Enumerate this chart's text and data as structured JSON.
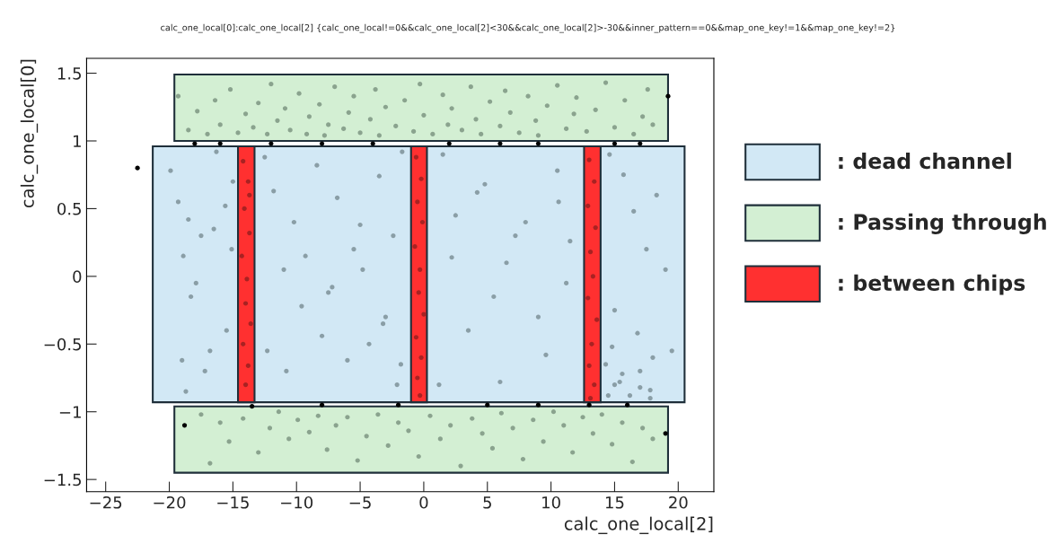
{
  "chart_data": {
    "type": "scatter",
    "title": "calc_one_local[0]:calc_one_local[2] {calc_one_local!=0&&calc_one_local[2]<30&&calc_one_local[2]>-30&&inner_pattern==0&&map_one_key!=1&&map_one_key!=2}",
    "xlabel": "calc_one_local[2]",
    "ylabel": "calc_one_local[0]",
    "xlim": [
      -26.5,
      22.8
    ],
    "ylim": [
      -1.59,
      1.61
    ],
    "xticks": [
      {
        "value": -25,
        "label": "−25"
      },
      {
        "value": -20,
        "label": "−20"
      },
      {
        "value": -15,
        "label": "−15"
      },
      {
        "value": -10,
        "label": "−10"
      },
      {
        "value": -5,
        "label": "−5"
      },
      0,
      5,
      10,
      15,
      20
    ],
    "yticks": [
      {
        "value": -1.5,
        "label": "−1.5"
      },
      {
        "value": -1,
        "label": "−1"
      },
      {
        "value": -0.5,
        "label": "−0.5"
      },
      0,
      0.5,
      1,
      1.5
    ],
    "grid": false,
    "legend": "right",
    "series": [
      {
        "name": ": dead channel",
        "type": "area",
        "color": "#d2e8f5",
        "x": [
          -21.3,
          -21.3,
          20.5,
          20.5
        ],
        "values": [
          -0.93,
          0.96,
          0.96,
          -0.93
        ]
      },
      {
        "name": ": Passing through",
        "type": "area",
        "color": "#d3efd3",
        "x": [
          -19.6,
          -19.6,
          19.2,
          19.2
        ],
        "values": [
          1.0,
          1.49,
          1.49,
          1.0
        ]
      },
      {
        "type": "area",
        "color": "#d3efd3",
        "x": [
          -19.6,
          -19.6,
          19.2,
          19.2
        ],
        "values": [
          -1.45,
          -0.96,
          -0.96,
          -1.45
        ]
      },
      {
        "name": ": between chips",
        "type": "area",
        "color": "#ff3030",
        "x": [
          -14.6,
          -14.6,
          -13.3,
          -13.3
        ],
        "values": [
          -0.93,
          0.96,
          0.96,
          -0.93
        ]
      },
      {
        "type": "area",
        "color": "#ff3030",
        "x": [
          -1.0,
          -1.0,
          0.25,
          0.25
        ],
        "values": [
          -0.93,
          0.96,
          0.96,
          -0.93
        ]
      },
      {
        "type": "area",
        "color": "#ff3030",
        "x": [
          12.6,
          12.6,
          13.9,
          13.9
        ],
        "values": [
          -0.93,
          0.96,
          0.96,
          -0.93
        ]
      },
      {
        "marker": "circle",
        "color": "#8aa38e",
        "x": [
          -19.3,
          -18.5,
          -17.8,
          -17,
          -16.4,
          -16,
          -15.2,
          -14.6,
          -14,
          -13.4,
          -13,
          -12.3,
          -12,
          -11.5,
          -10.9,
          -10.5,
          -9.8,
          -9.2,
          -9,
          -8.2,
          -7.8,
          -7.5,
          -7,
          -6.3,
          -5.9,
          -5.5,
          -5,
          -4.2,
          -3.8,
          -3.5,
          -3,
          -2.2,
          -1.5,
          -0.8,
          -0.3,
          0,
          0.7,
          1.5,
          1.9,
          2.2,
          3,
          3.7,
          4.1,
          4.5,
          5.2,
          6,
          6.4,
          6.8,
          7.5,
          8.2,
          8.8,
          9,
          9.7,
          10.5,
          11.2,
          11.8,
          12,
          12.8,
          13.5,
          14.3,
          15,
          15.8,
          16.5,
          17.2,
          17.6,
          18
        ],
        "values": [
          1.33,
          1.08,
          1.22,
          1.05,
          1.3,
          1.12,
          1.38,
          1.06,
          1.2,
          1.1,
          1.28,
          1.05,
          1.42,
          1.15,
          1.24,
          1.08,
          1.35,
          1.05,
          1.18,
          1.27,
          1.04,
          1.12,
          1.4,
          1.09,
          1.21,
          1.33,
          1.06,
          1.16,
          1.38,
          1.04,
          1.25,
          1.11,
          1.3,
          1.07,
          1.42,
          1.19,
          1.05,
          1.34,
          1.12,
          1.24,
          1.08,
          1.4,
          1.16,
          1.05,
          1.29,
          1.11,
          1.37,
          1.21,
          1.06,
          1.33,
          1.15,
          1.04,
          1.26,
          1.41,
          1.09,
          1.2,
          1.32,
          1.07,
          1.23,
          1.43,
          1.1,
          1.3,
          1.05,
          1.18,
          1.38,
          1.12
        ]
      },
      {
        "marker": "circle",
        "color": "#8aa38e",
        "x": [
          -17.5,
          -16.8,
          -16,
          -15.3,
          -14.2,
          -13,
          -12.1,
          -11.4,
          -10.6,
          -9.9,
          -9,
          -8.3,
          -7.6,
          -6.9,
          -6,
          -5.2,
          -4.5,
          -3.6,
          -2.8,
          -2,
          -1.2,
          -0.4,
          0.5,
          1.3,
          2.1,
          2.9,
          3.8,
          4.6,
          5.4,
          6.1,
          7,
          7.8,
          8.6,
          9.4,
          10.2,
          11,
          11.7,
          12.5,
          13.3,
          14,
          14.8,
          15.6,
          16.4,
          17.2,
          18
        ],
        "values": [
          -1.02,
          -1.38,
          -1.08,
          -1.22,
          -1.05,
          -1.3,
          -1.12,
          -1.0,
          -1.2,
          -1.06,
          -1.15,
          -1.03,
          -1.28,
          -1.1,
          -1.04,
          -1.36,
          -1.18,
          -1.02,
          -1.25,
          -1.08,
          -1.14,
          -1.33,
          -1.03,
          -1.2,
          -1.1,
          -1.4,
          -1.05,
          -1.16,
          -1.27,
          -1.01,
          -1.12,
          -1.35,
          -1.06,
          -1.22,
          -1.0,
          -1.1,
          -1.3,
          -1.04,
          -1.16,
          -1.02,
          -1.24,
          -1.08,
          -1.37,
          -1.12,
          -1.2
        ]
      },
      {
        "marker": "circle",
        "color": "#8a9ea6",
        "x": [
          -19.9,
          -19.3,
          -18.5,
          -17.5,
          -16.3,
          -15,
          -18.9,
          -17.9,
          -16.5,
          -15.5,
          -19,
          -18.3,
          -16.8,
          -15.1,
          -18.7,
          -17.2,
          -15.6,
          -12.5,
          -11.8,
          -10.2,
          -8.4,
          -6.8,
          -5.5,
          -3.5,
          -2.4,
          -1.7,
          -11,
          -9.6,
          -7.2,
          -5,
          -3,
          -12.3,
          -10.8,
          -8,
          -6,
          -4.3,
          -2.1,
          -9.3,
          -7.5,
          -4.8,
          -3.2,
          -1.8,
          1.5,
          2.5,
          4.2,
          6.5,
          8,
          10.5,
          11.5,
          3.5,
          5.5,
          7.2,
          9.6,
          11.2,
          1.2,
          4.8,
          9,
          2.2,
          6,
          10.6,
          14.6,
          15.7,
          16.5,
          17.5,
          18.3,
          19,
          15,
          16.8,
          18,
          14.8,
          17,
          19.5,
          15.4,
          17.8,
          14.5,
          15,
          15.6,
          16.2,
          17,
          17.8,
          14.3
        ],
        "values": [
          0.78,
          0.55,
          0.42,
          0.3,
          0.92,
          0.7,
          0.15,
          -0.05,
          0.35,
          -0.4,
          -0.62,
          -0.15,
          -0.55,
          0.2,
          -0.85,
          -0.7,
          0.52,
          0.88,
          0.63,
          0.4,
          0.82,
          0.58,
          0.2,
          0.74,
          0.3,
          0.92,
          0.05,
          -0.22,
          -0.08,
          0.38,
          -0.3,
          -0.55,
          -0.7,
          -0.44,
          -0.62,
          -0.5,
          -0.8,
          0.15,
          -0.12,
          0.05,
          -0.35,
          -0.65,
          0.9,
          0.45,
          0.62,
          0.1,
          0.4,
          0.78,
          0.26,
          -0.4,
          -0.15,
          0.3,
          -0.58,
          -0.05,
          -0.8,
          0.68,
          -0.3,
          0.14,
          -0.78,
          0.55,
          0.9,
          0.75,
          0.48,
          0.2,
          0.6,
          0.05,
          -0.25,
          -0.42,
          -0.6,
          -0.52,
          -0.7,
          -0.55,
          -0.78,
          -0.84,
          -0.88,
          -0.8,
          -0.72,
          -0.88,
          -0.82,
          -0.9,
          -0.65
        ]
      },
      {
        "marker": "circle",
        "color": "#a82222",
        "x": [
          -14.2,
          -13.8,
          -14.1,
          -13.7,
          -14.3,
          -13.9,
          -14,
          -13.6,
          -14.2,
          -13.8,
          -14,
          -13.7,
          -0.6,
          -0.2,
          -0.5,
          -0.1,
          -0.7,
          -0.3,
          -0.4,
          0,
          -0.6,
          -0.2,
          -0.5,
          -0.3,
          13,
          13.4,
          12.9,
          13.5,
          13.1,
          13.3,
          12.9,
          13.6,
          13.2,
          13,
          13.4,
          13.1
        ],
        "values": [
          0.85,
          0.7,
          0.5,
          0.32,
          0.15,
          -0.02,
          -0.2,
          -0.35,
          -0.5,
          -0.66,
          -0.8,
          0.6,
          0.88,
          0.72,
          0.55,
          0.4,
          0.22,
          0.05,
          -0.12,
          -0.28,
          -0.45,
          -0.6,
          -0.75,
          -0.88,
          0.86,
          0.7,
          0.52,
          0.36,
          0.18,
          0.0,
          -0.16,
          -0.32,
          -0.5,
          -0.66,
          -0.8,
          -0.9
        ]
      },
      {
        "marker": "circle",
        "color": "#000000",
        "x": [
          -22.5,
          19.2,
          -18.8,
          19,
          -18,
          -16,
          -12,
          -8,
          -4,
          2,
          6,
          9,
          15,
          17,
          -13.5,
          -8,
          -2,
          5,
          9,
          13,
          16
        ],
        "values": [
          0.8,
          1.33,
          -1.1,
          -1.16,
          0.98,
          0.98,
          0.98,
          0.98,
          0.98,
          0.98,
          0.98,
          0.98,
          0.98,
          0.98,
          -0.96,
          -0.95,
          -0.95,
          -0.95,
          -0.95,
          -0.95,
          -0.95
        ]
      }
    ]
  }
}
